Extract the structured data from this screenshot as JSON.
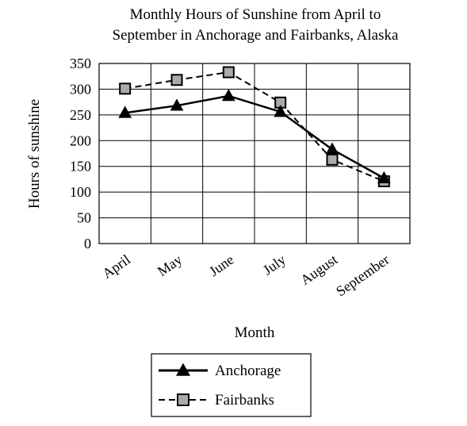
{
  "chart_data": {
    "type": "line",
    "title": [
      "Monthly Hours of Sunshine from April to",
      "September in Anchorage and Fairbanks, Alaska"
    ],
    "xlabel": "Month",
    "ylabel": "Hours of sunshine",
    "categories": [
      "April",
      "May",
      "June",
      "July",
      "August",
      "September"
    ],
    "ylim": [
      0,
      350
    ],
    "yticks": [
      0,
      50,
      100,
      150,
      200,
      250,
      300,
      350
    ],
    "grid": true,
    "legend_position": "bottom",
    "series": [
      {
        "name": "Anchorage",
        "values": [
          254,
          268,
          287,
          256,
          183,
          127
        ],
        "line_style": "solid",
        "marker": "triangle",
        "marker_color": "#000000"
      },
      {
        "name": "Fairbanks",
        "values": [
          301,
          318,
          333,
          274,
          163,
          121
        ],
        "line_style": "dashed",
        "marker": "square",
        "marker_color": "#aaaaaa"
      }
    ]
  }
}
